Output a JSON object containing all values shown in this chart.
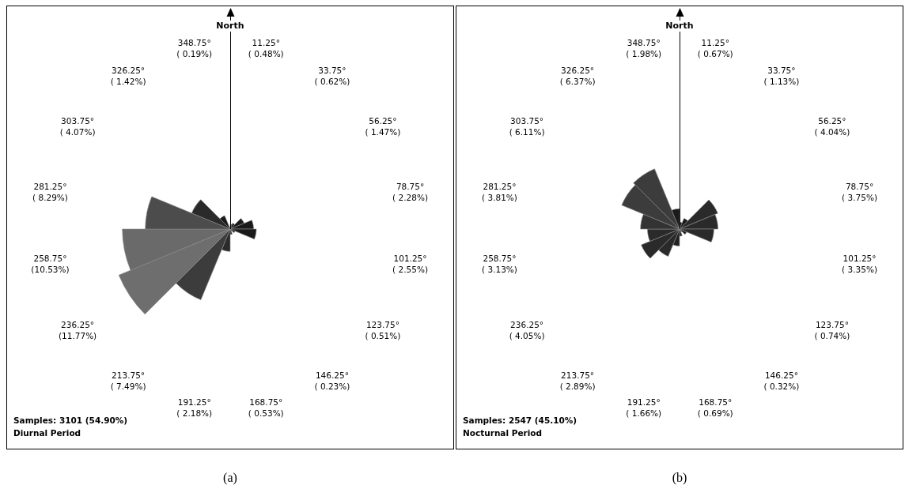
{
  "chart_data": [
    {
      "type": "other",
      "categories": [
        "11.25°",
        "33.75°",
        "56.25°",
        "78.75°",
        "101.25°",
        "123.75°",
        "146.25°",
        "168.75°",
        "191.25°",
        "213.75°",
        "236.25°",
        "258.75°",
        "281.25°",
        "303.75°",
        "326.25°",
        "348.75°"
      ],
      "values": [
        0.48,
        0.62,
        1.47,
        2.28,
        2.55,
        0.51,
        0.23,
        0.53,
        2.18,
        7.49,
        11.77,
        10.53,
        8.29,
        4.07,
        1.42,
        0.19
      ],
      "value_labels": [
        "( 0.48%)",
        "( 0.62%)",
        "( 1.47%)",
        "( 2.28%)",
        "( 2.55%)",
        "( 0.51%)",
        "( 0.23%)",
        "( 0.53%)",
        "( 2.18%)",
        "( 7.49%)",
        "(11.77%)",
        "(10.53%)",
        "( 8.29%)",
        "( 4.07%)",
        "( 1.42%)",
        "( 0.19%)"
      ],
      "colors": [
        "#1a1a1a",
        "#1a1a1a",
        "#1a1a1a",
        "#1a1a1a",
        "#1a1a1a",
        "#1a1a1a",
        "#1a1a1a",
        "#1a1a1a",
        "#2a2a2a",
        "#3c3c3c",
        "#6e6e6e",
        "#6a6a6a",
        "#4c4c4c",
        "#2a2a2a",
        "#1a1a1a",
        "#1a1a1a"
      ],
      "annotations": [
        "North",
        "Samples: 3101 (54.90%)",
        "Diurnal Period",
        "(a)"
      ]
    },
    {
      "type": "other",
      "categories": [
        "11.25°",
        "33.75°",
        "56.25°",
        "78.75°",
        "101.25°",
        "123.75°",
        "146.25°",
        "168.75°",
        "191.25°",
        "213.75°",
        "236.25°",
        "258.75°",
        "281.25°",
        "303.75°",
        "326.25°",
        "348.75°"
      ],
      "values": [
        0.67,
        1.13,
        4.04,
        3.75,
        3.35,
        0.74,
        0.32,
        0.69,
        1.66,
        2.89,
        4.05,
        3.13,
        3.81,
        6.11,
        6.37,
        1.98
      ],
      "value_labels": [
        "( 0.67%)",
        "( 1.13%)",
        "( 4.04%)",
        "( 3.75%)",
        "( 3.35%)",
        "( 0.74%)",
        "( 0.32%)",
        "( 0.69%)",
        "( 1.66%)",
        "( 2.89%)",
        "( 4.05%)",
        "( 3.13%)",
        "( 3.81%)",
        "( 6.11%)",
        "( 6.37%)",
        "( 1.98%)"
      ],
      "colors": [
        "#1a1a1a",
        "#1a1a1a",
        "#2a2a2a",
        "#2a2a2a",
        "#2a2a2a",
        "#1a1a1a",
        "#1a1a1a",
        "#1a1a1a",
        "#222222",
        "#2a2a2a",
        "#2a2a2a",
        "#2a2a2a",
        "#333333",
        "#3c3c3c",
        "#3c3c3c",
        "#1a1a1a"
      ],
      "annotations": [
        "North",
        "Samples: 2547 (45.10%)",
        "Nocturnal Period",
        "(b)"
      ]
    }
  ]
}
